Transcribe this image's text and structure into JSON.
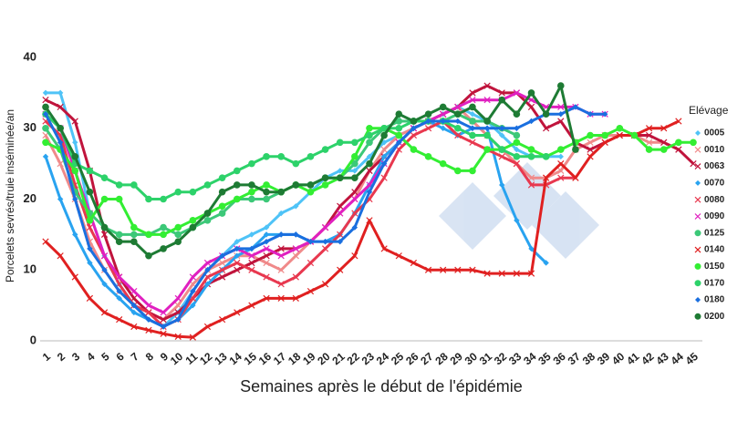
{
  "chart_data": {
    "type": "line",
    "y_label": "Porcelets sevrés/truie inséminée/an",
    "x_label": "Semaines après le début de l'épidémie",
    "legend_title": "Elévage",
    "x": [
      1,
      2,
      3,
      4,
      5,
      6,
      7,
      8,
      9,
      10,
      11,
      12,
      13,
      14,
      15,
      16,
      17,
      18,
      19,
      20,
      21,
      22,
      23,
      24,
      25,
      26,
      27,
      28,
      29,
      30,
      31,
      32,
      33,
      34,
      35,
      36,
      37,
      38,
      39,
      40,
      41,
      42,
      43,
      44,
      45
    ],
    "xlim": [
      1,
      45
    ],
    "xticks": [
      1,
      2,
      3,
      4,
      5,
      6,
      7,
      8,
      9,
      10,
      11,
      12,
      13,
      14,
      15,
      16,
      17,
      18,
      19,
      20,
      21,
      22,
      23,
      24,
      25,
      26,
      27,
      28,
      29,
      30,
      31,
      32,
      33,
      34,
      35,
      36,
      37,
      38,
      39,
      40,
      41,
      42,
      43,
      44,
      45
    ],
    "ylim": [
      0,
      40
    ],
    "yticks": [
      0,
      10,
      20,
      30,
      40
    ],
    "grid": false,
    "legend": "right",
    "series": [
      {
        "name": "0005",
        "color": "#4fc3f7",
        "marker": "diamond",
        "values": [
          35,
          35,
          28,
          18,
          12,
          8,
          5,
          3,
          2,
          4,
          7,
          10,
          12,
          14,
          15,
          16,
          18,
          19,
          21,
          23,
          24,
          24,
          26,
          28,
          29,
          30,
          31,
          32,
          33,
          32,
          31,
          29,
          27,
          26,
          26,
          26,
          null,
          null,
          null,
          null,
          null,
          null,
          null,
          null,
          null
        ]
      },
      {
        "name": "0010",
        "color": "#f08a8a",
        "marker": "x",
        "values": [
          29,
          25,
          20,
          14,
          10,
          7,
          5,
          4,
          3,
          5,
          8,
          10,
          11,
          12,
          12,
          11,
          10,
          12,
          14,
          16,
          18,
          20,
          24,
          27,
          29,
          30,
          31,
          32,
          33,
          31,
          29,
          27,
          25,
          23,
          23,
          24,
          27,
          28,
          29,
          29,
          29,
          28,
          28,
          27,
          null
        ]
      },
      {
        "name": "0063",
        "color": "#c0143c",
        "marker": "x",
        "values": [
          34,
          33,
          31,
          24,
          15,
          9,
          6,
          4,
          3,
          4,
          6,
          8,
          9,
          10,
          11,
          12,
          13,
          13,
          14,
          16,
          19,
          21,
          24,
          26,
          28,
          30,
          31,
          32,
          33,
          35,
          36,
          35,
          35,
          33,
          30,
          31,
          28,
          27,
          28,
          29,
          29,
          29,
          28,
          27,
          25
        ]
      },
      {
        "name": "0070",
        "color": "#29a3f0",
        "marker": "diamond",
        "values": [
          26,
          20,
          15,
          11,
          8,
          6,
          4,
          3,
          2,
          3,
          5,
          8,
          10,
          12,
          13,
          15,
          15,
          15,
          14,
          14,
          15,
          18,
          22,
          26,
          28,
          30,
          31,
          30,
          29,
          30,
          30,
          22,
          17,
          13,
          11,
          null,
          null,
          null,
          null,
          null,
          null,
          null,
          null,
          null,
          null
        ]
      },
      {
        "name": "0080",
        "color": "#e8384f",
        "marker": "x",
        "values": [
          31,
          29,
          22,
          16,
          12,
          8,
          5,
          4,
          2,
          3,
          6,
          9,
          10,
          11,
          10,
          9,
          8,
          9,
          11,
          13,
          15,
          18,
          20,
          23,
          27,
          29,
          30,
          31,
          29,
          28,
          27,
          26,
          25,
          22,
          22,
          23,
          23,
          null,
          null,
          null,
          null,
          null,
          null,
          null,
          null
        ]
      },
      {
        "name": "0090",
        "color": "#e020c0",
        "marker": "x",
        "values": [
          32,
          30,
          24,
          18,
          12,
          9,
          7,
          5,
          4,
          6,
          9,
          11,
          12,
          13,
          12,
          13,
          12,
          13,
          14,
          16,
          18,
          20,
          22,
          25,
          28,
          30,
          31,
          32,
          33,
          34,
          34,
          34,
          35,
          34,
          33,
          33,
          33,
          32,
          32,
          null,
          null,
          null,
          null,
          null,
          null
        ]
      },
      {
        "name": "0125",
        "color": "#3cc878",
        "marker": "circle",
        "values": [
          30,
          27,
          21,
          18,
          16,
          15,
          15,
          15,
          16,
          15,
          16,
          17,
          18,
          20,
          20,
          20,
          21,
          22,
          22,
          23,
          23,
          25,
          28,
          30,
          31,
          31,
          31,
          31,
          32,
          31,
          31,
          30,
          29,
          null,
          null,
          null,
          null,
          null,
          null,
          null,
          null,
          null,
          null,
          null,
          null
        ]
      },
      {
        "name": "0140",
        "color": "#e02020",
        "marker": "x",
        "values": [
          14,
          12,
          9,
          6,
          4,
          3,
          2,
          1.5,
          1,
          0.6,
          0.5,
          2,
          3,
          4,
          5,
          6,
          6,
          6,
          7,
          8,
          10,
          12,
          17,
          13,
          12,
          11,
          10,
          10,
          10,
          10,
          9.5,
          9.5,
          9.5,
          9.5,
          23,
          25,
          23,
          26,
          28,
          29,
          29,
          30,
          30,
          31,
          null
        ]
      },
      {
        "name": "0150",
        "color": "#33ee33",
        "marker": "circle",
        "values": [
          28,
          27,
          24,
          17,
          20,
          20,
          16,
          15,
          15,
          16,
          17,
          18,
          19,
          20,
          21,
          22,
          21,
          22,
          21,
          22,
          23,
          26,
          30,
          30,
          29,
          27,
          26,
          25,
          24,
          24,
          27,
          27,
          28,
          27,
          26,
          27,
          28,
          29,
          29,
          30,
          29,
          27,
          27,
          28,
          28
        ]
      },
      {
        "name": "0170",
        "color": "#2dd26a",
        "marker": "circle",
        "values": [
          32,
          30,
          25,
          24,
          23,
          22,
          22,
          20,
          20,
          21,
          21,
          22,
          23,
          24,
          25,
          26,
          26,
          25,
          26,
          27,
          28,
          28,
          29,
          30,
          30,
          31,
          31,
          31,
          30,
          29,
          29,
          27,
          26,
          26,
          26,
          null,
          null,
          null,
          null,
          null,
          null,
          null,
          null,
          null,
          null
        ]
      },
      {
        "name": "0180",
        "color": "#1a6fdf",
        "marker": "diamond",
        "values": [
          32,
          28,
          20,
          13,
          10,
          7,
          5,
          3,
          2,
          3,
          7,
          10,
          12,
          13,
          13,
          14,
          15,
          15,
          14,
          14,
          14,
          16,
          21,
          25,
          28,
          30,
          31,
          31,
          31,
          30,
          30,
          30,
          30,
          31,
          32,
          32,
          33,
          32,
          32,
          null,
          null,
          null,
          null,
          null,
          null
        ]
      },
      {
        "name": "0200",
        "color": "#1e7b34",
        "marker": "circle",
        "values": [
          33,
          30,
          26,
          21,
          16,
          14,
          14,
          12,
          13,
          14,
          16,
          18,
          21,
          22,
          22,
          21,
          21,
          22,
          22,
          23,
          23,
          23,
          25,
          29,
          32,
          31,
          32,
          33,
          32,
          33,
          31,
          34,
          32,
          35,
          32,
          36,
          27,
          null,
          null,
          null,
          null,
          null,
          null,
          null,
          null
        ]
      }
    ]
  }
}
